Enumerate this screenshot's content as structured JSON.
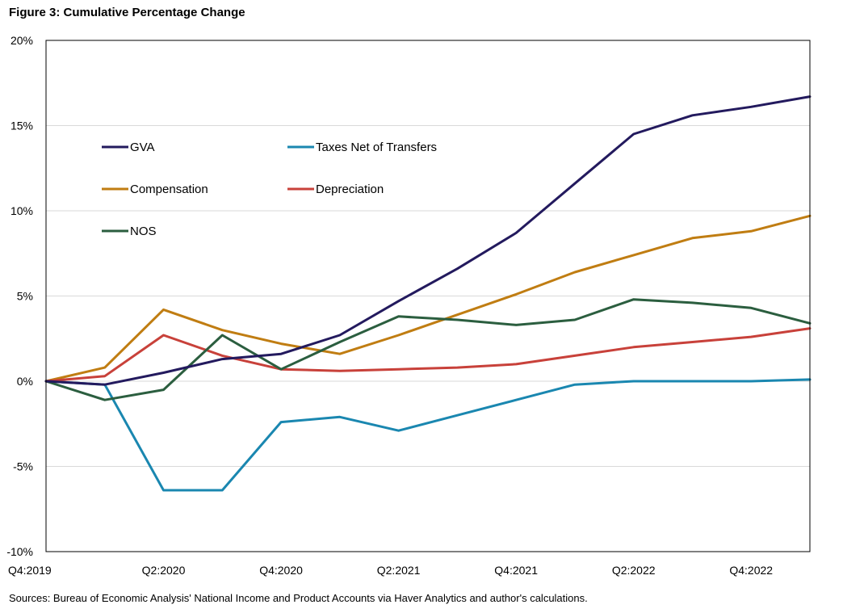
{
  "figure_title": "Figure 3: Cumulative Percentage Change",
  "source_note": "Sources: Bureau of Economic Analysis' National Income and Product Accounts via Haver Analytics and author's calculations.",
  "chart_data": {
    "type": "line",
    "title": "Figure 3: Cumulative Percentage Change",
    "xlabel": "",
    "ylabel": "",
    "ylim": [
      -10,
      20
    ],
    "y_ticks": [
      -10,
      -5,
      0,
      5,
      10,
      15,
      20
    ],
    "y_tick_labels": [
      "-10%",
      "-5%",
      "0%",
      "5%",
      "10%",
      "15%",
      "20%"
    ],
    "grid": true,
    "legend_position": "top-left",
    "x": [
      "Q4:2019",
      "Q1:2020",
      "Q2:2020",
      "Q3:2020",
      "Q4:2020",
      "Q1:2021",
      "Q2:2021",
      "Q3:2021",
      "Q4:2021",
      "Q1:2022",
      "Q2:2022",
      "Q3:2022",
      "Q4:2022",
      "Q1:2023"
    ],
    "x_tick_labels": [
      "Q4:2019",
      "Q2:2020",
      "Q4:2020",
      "Q2:2021",
      "Q4:2021",
      "Q2:2022",
      "Q4:2022"
    ],
    "series": [
      {
        "name": "GVA",
        "color": "#231a5e",
        "values": [
          0.0,
          -0.2,
          0.5,
          1.3,
          1.6,
          2.7,
          4.7,
          6.6,
          8.7,
          11.6,
          14.5,
          15.6,
          16.1,
          16.7
        ]
      },
      {
        "name": "Taxes Net of Transfers",
        "color": "#1a87b0",
        "values": [
          0.0,
          -0.2,
          -6.4,
          -6.4,
          -2.4,
          -2.1,
          -2.9,
          -2.0,
          -1.1,
          -0.2,
          0.0,
          0.0,
          0.0,
          0.1
        ]
      },
      {
        "name": "Compensation",
        "color": "#c07d12",
        "values": [
          0.0,
          0.8,
          4.2,
          3.0,
          2.2,
          1.6,
          2.7,
          3.9,
          5.1,
          6.4,
          7.4,
          8.4,
          8.8,
          9.7
        ]
      },
      {
        "name": "Depreciation",
        "color": "#c8413a",
        "values": [
          0.0,
          0.3,
          2.7,
          1.5,
          0.7,
          0.6,
          0.7,
          0.8,
          1.0,
          1.5,
          2.0,
          2.3,
          2.6,
          3.1
        ]
      },
      {
        "name": "NOS",
        "color": "#2b5e3f",
        "values": [
          0.0,
          -1.1,
          -0.5,
          2.7,
          0.7,
          2.3,
          3.8,
          3.6,
          3.3,
          3.6,
          4.8,
          4.6,
          4.3,
          3.4
        ]
      }
    ]
  }
}
